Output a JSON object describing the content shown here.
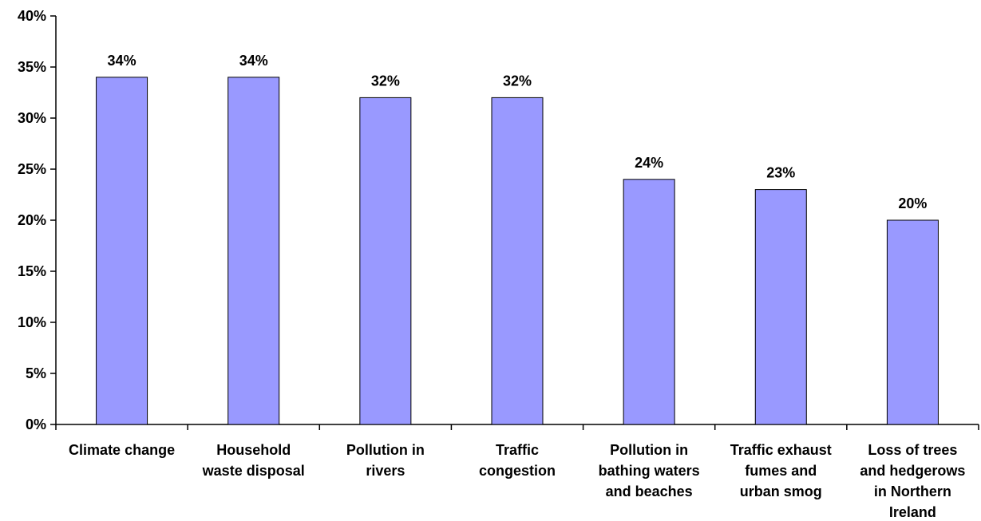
{
  "chart_data": {
    "type": "bar",
    "title": "",
    "xlabel": "",
    "ylabel": "",
    "ylim": [
      0,
      40
    ],
    "y_ticks": [
      "0%",
      "5%",
      "10%",
      "15%",
      "20%",
      "25%",
      "30%",
      "35%",
      "40%"
    ],
    "categories": [
      "Climate change",
      "Household waste disposal",
      "Pollution in rivers",
      "Traffic congestion",
      "Pollution in bathing waters and beaches",
      "Traffic exhaust fumes and urban smog",
      "Loss of trees and hedgerows in Northern Ireland"
    ],
    "category_lines": [
      [
        "Climate change"
      ],
      [
        "Household",
        "waste disposal"
      ],
      [
        "Pollution in",
        "rivers"
      ],
      [
        "Traffic",
        "congestion"
      ],
      [
        "Pollution in",
        "bathing waters",
        "and beaches"
      ],
      [
        "Traffic exhaust",
        "fumes and",
        "urban smog"
      ],
      [
        "Loss of trees",
        "and hedgerows",
        "in Northern",
        "Ireland"
      ]
    ],
    "values": [
      34,
      34,
      32,
      32,
      24,
      23,
      20
    ],
    "data_labels": [
      "34%",
      "34%",
      "32%",
      "32%",
      "24%",
      "23%",
      "20%"
    ],
    "bar_color": "#9999FF",
    "bar_stroke": "#000000",
    "grid": false,
    "legend": "none"
  }
}
